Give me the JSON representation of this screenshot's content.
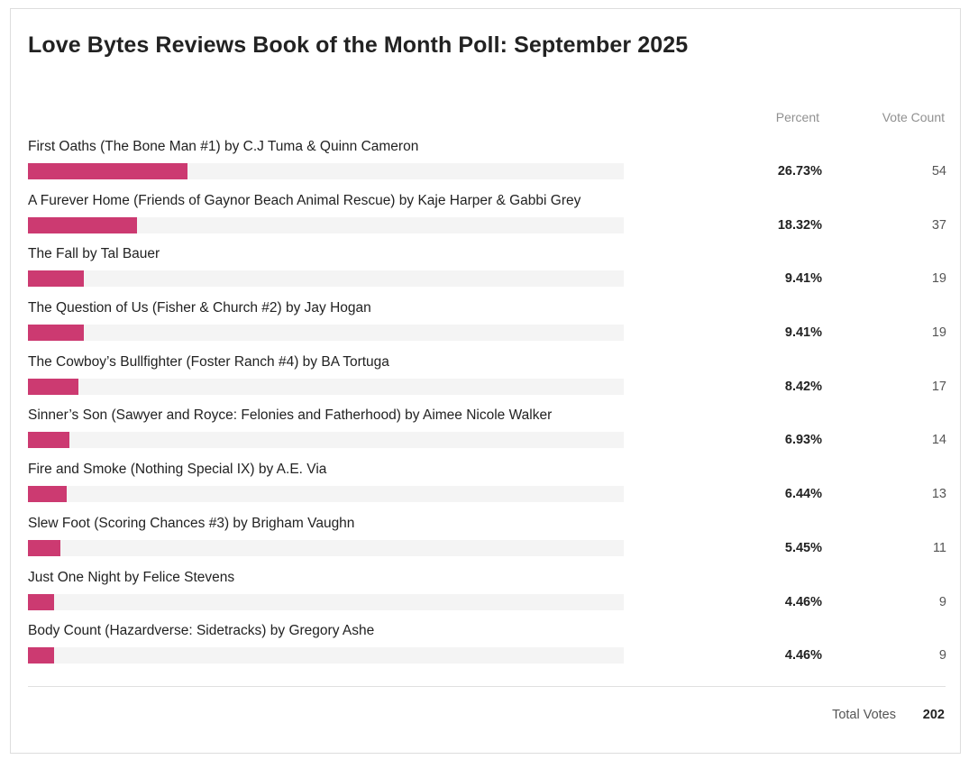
{
  "poll": {
    "title": "Love Bytes Reviews Book of the Month Poll: September 2025",
    "headers": {
      "percent": "Percent",
      "votes": "Vote Count"
    },
    "colors": {
      "bar": "#cc3a71",
      "track": "#f4f4f4"
    },
    "options": [
      {
        "label": "First Oaths (The Bone Man #1) by C.J Tuma & Quinn Cameron",
        "percent": "26.73%",
        "share": 0.2673,
        "votes": "54"
      },
      {
        "label": "A Furever Home (Friends of Gaynor Beach Animal Rescue) by Kaje Harper & Gabbi Grey",
        "percent": "18.32%",
        "share": 0.1832,
        "votes": "37"
      },
      {
        "label": "The Fall by Tal Bauer",
        "percent": "9.41%",
        "share": 0.0941,
        "votes": "19"
      },
      {
        "label": "The Question of Us (Fisher & Church #2) by Jay Hogan",
        "percent": "9.41%",
        "share": 0.0941,
        "votes": "19"
      },
      {
        "label": "The Cowboy’s Bullfighter (Foster Ranch #4) by BA Tortuga",
        "percent": "8.42%",
        "share": 0.0842,
        "votes": "17"
      },
      {
        "label": "Sinner’s Son (Sawyer and Royce: Felonies and Fatherhood) by Aimee Nicole Walker",
        "percent": "6.93%",
        "share": 0.0693,
        "votes": "14"
      },
      {
        "label": "Fire and Smoke (Nothing Special IX) by A.E. Via",
        "percent": "6.44%",
        "share": 0.0644,
        "votes": "13"
      },
      {
        "label": "Slew Foot (Scoring Chances #3) by Brigham Vaughn",
        "percent": "5.45%",
        "share": 0.0545,
        "votes": "11"
      },
      {
        "label": "Just One Night by Felice Stevens",
        "percent": "4.46%",
        "share": 0.0446,
        "votes": "9"
      },
      {
        "label": "Body Count (Hazardverse: Sidetracks) by Gregory Ashe",
        "percent": "4.46%",
        "share": 0.0446,
        "votes": "9"
      }
    ],
    "total": {
      "label": "Total Votes",
      "value": "202"
    }
  }
}
